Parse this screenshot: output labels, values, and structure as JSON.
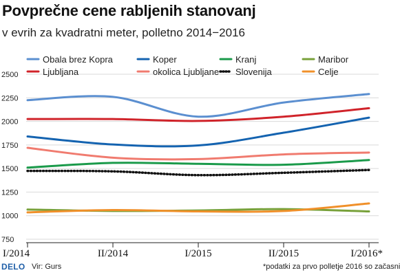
{
  "chart_data": {
    "type": "line",
    "title": "Povprečne cene rabljenih stanovanj",
    "subtitle": "v evrih za kvadratni meter, polletno 2014−2016",
    "categories": [
      "I/2014",
      "II/2014",
      "I/2015",
      "II/2015",
      "I/2016*"
    ],
    "ylim": [
      750,
      2500
    ],
    "yticks": [
      750,
      1000,
      1250,
      1500,
      1750,
      2000,
      2250,
      2500
    ],
    "series": [
      {
        "name": "Obala brez Kopra",
        "color": "#5b8fd0",
        "dotted": false,
        "values": [
          2225,
          2260,
          2050,
          2200,
          2290
        ]
      },
      {
        "name": "Koper",
        "color": "#1463b0",
        "dotted": false,
        "values": [
          1840,
          1755,
          1745,
          1880,
          2040
        ]
      },
      {
        "name": "Kranj",
        "color": "#1a9a4a",
        "dotted": false,
        "values": [
          1510,
          1560,
          1550,
          1540,
          1590
        ]
      },
      {
        "name": "Maribor",
        "color": "#78a13a",
        "dotted": false,
        "values": [
          1065,
          1050,
          1055,
          1070,
          1045
        ]
      },
      {
        "name": "Ljubljana",
        "color": "#d0232a",
        "dotted": false,
        "values": [
          2025,
          2025,
          2005,
          2050,
          2140
        ]
      },
      {
        "name": "okolica Ljubljane",
        "color": "#f07b6f",
        "dotted": false,
        "values": [
          1720,
          1615,
          1600,
          1650,
          1670
        ]
      },
      {
        "name": "Slovenija",
        "color": "#111111",
        "dotted": true,
        "values": [
          1475,
          1470,
          1430,
          1455,
          1485
        ]
      },
      {
        "name": "Celje",
        "color": "#f0902a",
        "dotted": false,
        "values": [
          1035,
          1060,
          1045,
          1050,
          1130
        ]
      }
    ]
  },
  "footer": {
    "brand": "DELO",
    "source": "Vir: Gurs",
    "note": "*podatki za prvo polletje 2016 so začasni"
  }
}
